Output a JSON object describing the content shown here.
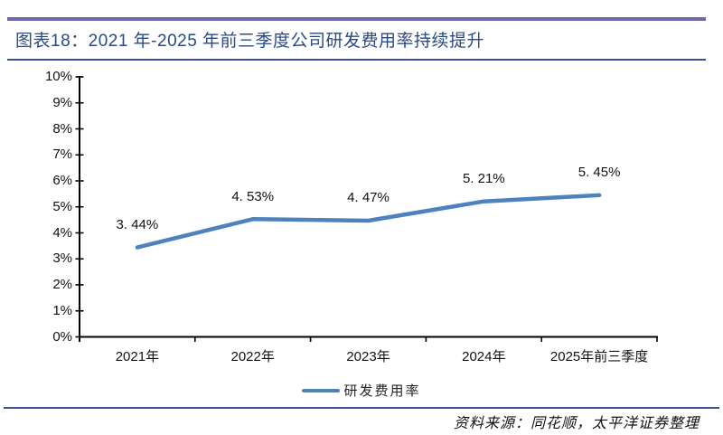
{
  "header": {
    "title": "图表18：2021 年-2025 年前三季度公司研发费用率持续提升"
  },
  "chart_data": {
    "type": "line",
    "title": "2021 年-2025 年前三季度公司研发费用率持续提升",
    "categories": [
      "2021年",
      "2022年",
      "2023年",
      "2024年",
      "2025年前三季度"
    ],
    "series": [
      {
        "name": "研发费用率",
        "values": [
          3.44,
          4.53,
          4.47,
          5.21,
          5.45
        ]
      }
    ],
    "point_labels": [
      "3. 44%",
      "4. 53%",
      "4. 47%",
      "5. 21%",
      "5. 45%"
    ],
    "ylim": [
      0,
      10
    ],
    "ytick_step": 1,
    "ytick_labels": [
      "0%",
      "1%",
      "2%",
      "3%",
      "4%",
      "5%",
      "6%",
      "7%",
      "8%",
      "9%",
      "10%"
    ],
    "xlabel": "",
    "ylabel": "",
    "grid": false,
    "legend_position": "bottom"
  },
  "legend": {
    "label": "研发费用率"
  },
  "footer": {
    "source": "资料来源：同花顺，太平洋证券整理"
  },
  "colors": {
    "rule_top": "#6B68A8",
    "rule_thin": "#3D5296",
    "title_text": "#2A4A84",
    "line": "#4F81BD",
    "axis": "#000000"
  }
}
